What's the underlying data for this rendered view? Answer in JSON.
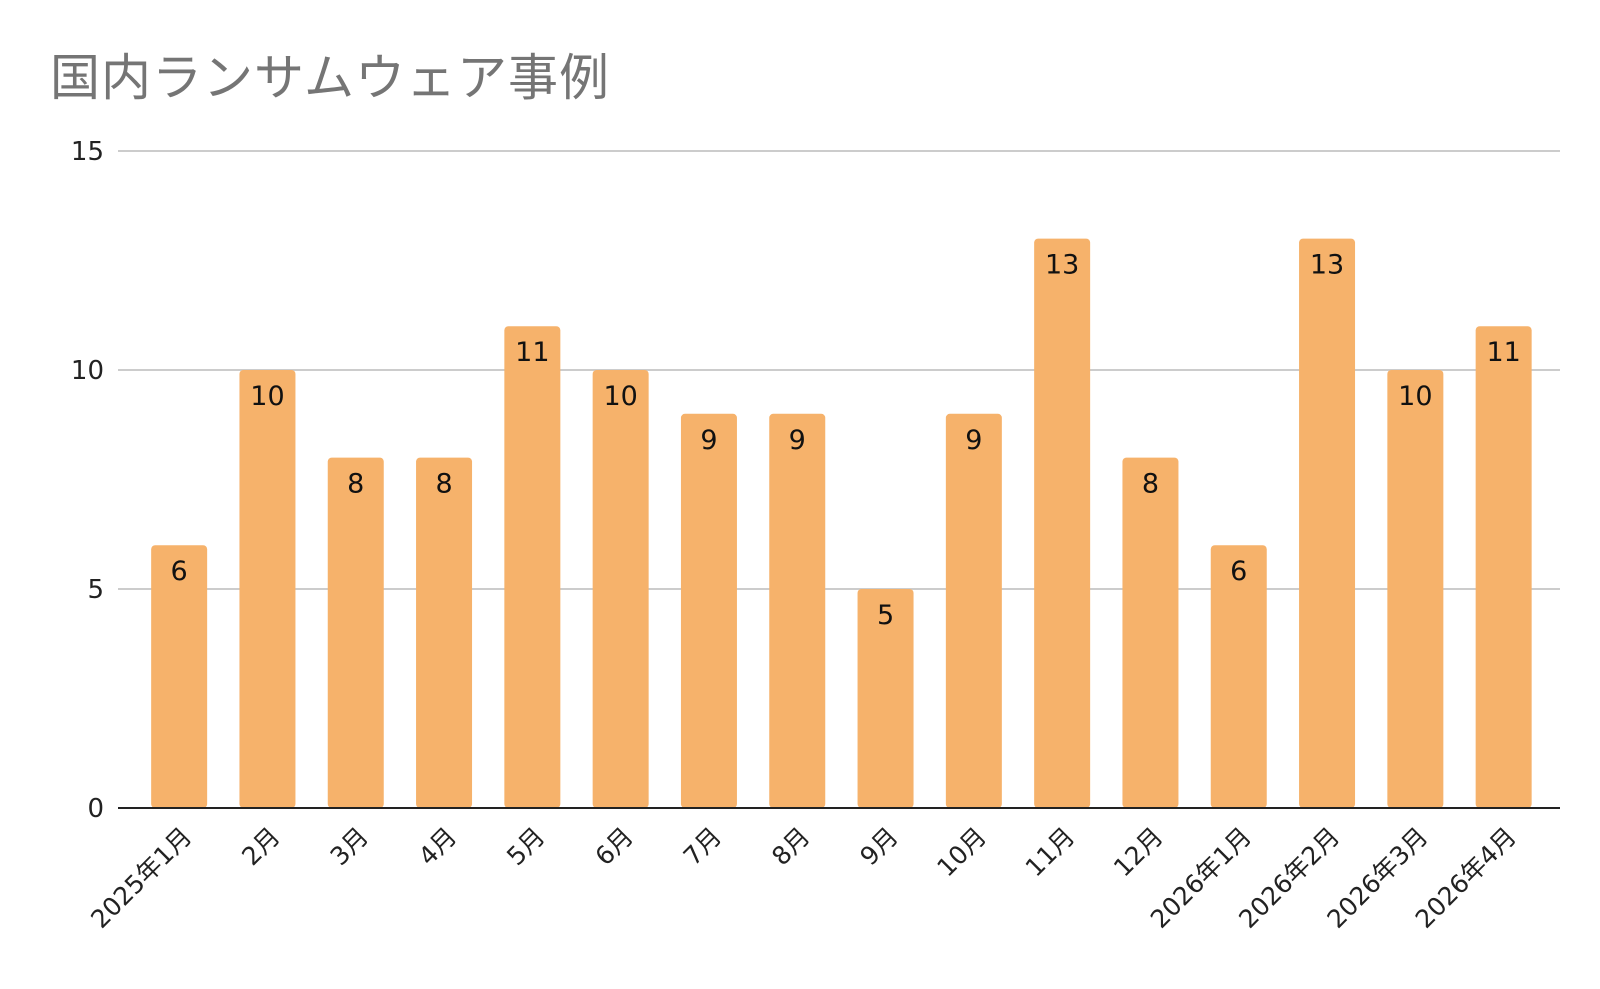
{
  "chart_data": {
    "type": "bar",
    "title": "国内ランサムウェア事例",
    "xlabel": "",
    "ylabel": "",
    "categories": [
      "2025年1月",
      "2月",
      "3月",
      "4月",
      "5月",
      "6月",
      "7月",
      "8月",
      "9月",
      "10月",
      "11月",
      "12月",
      "2026年1月",
      "2026年2月",
      "2026年3月",
      "2026年4月"
    ],
    "values": [
      6,
      10,
      8,
      8,
      11,
      10,
      9,
      9,
      5,
      9,
      13,
      8,
      6,
      13,
      10,
      11
    ],
    "ylim": [
      0,
      15
    ],
    "yticks": [
      0,
      5,
      10,
      15
    ],
    "grid": true,
    "legend": "none",
    "bar_color": "#f6b26b",
    "gridline_color": "#cccccc",
    "axis_color": "#222222",
    "title_color": "#757575"
  }
}
